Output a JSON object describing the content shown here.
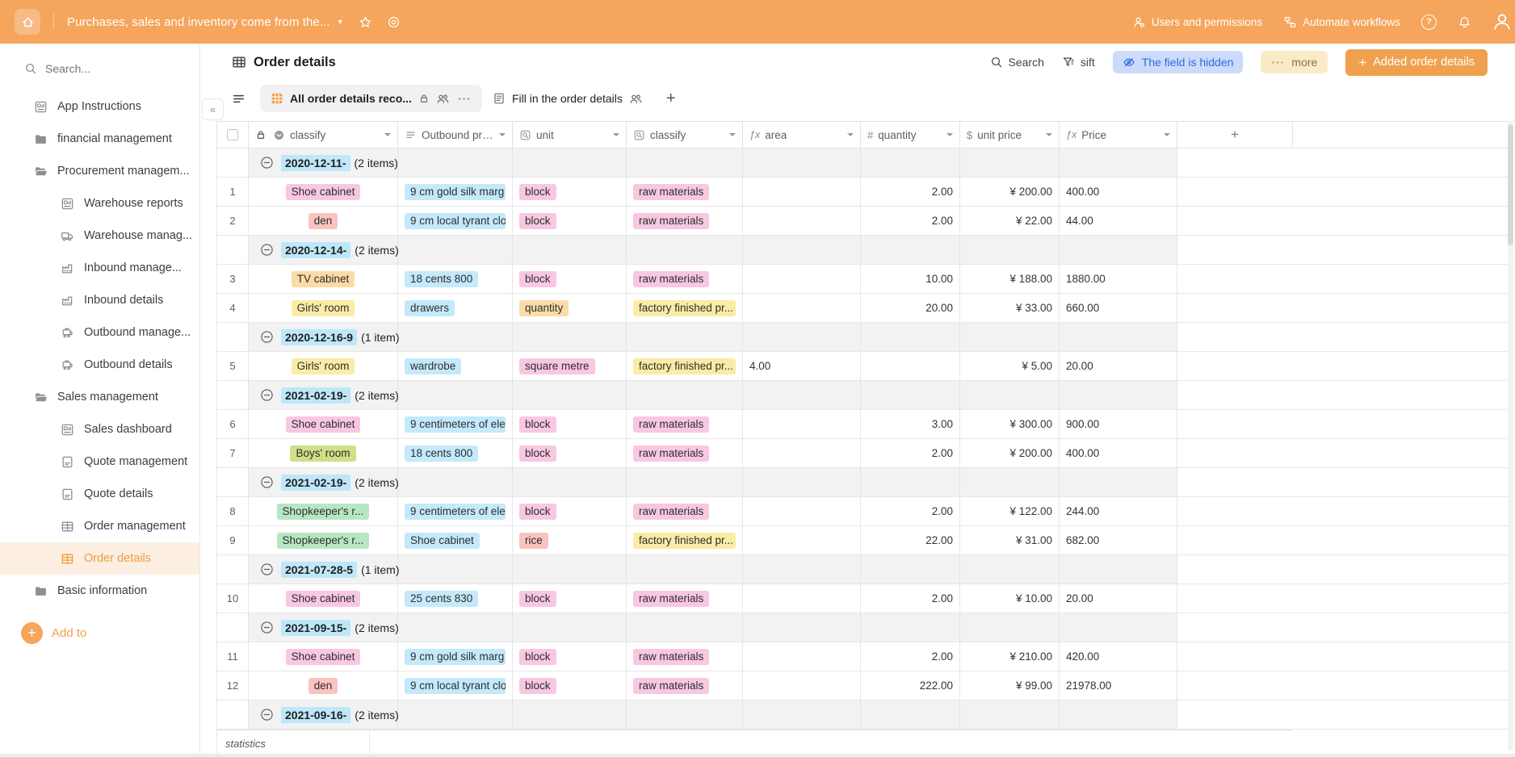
{
  "topbar": {
    "title": "Purchases, sales and inventory come from the...",
    "users_label": "Users and permissions",
    "automate_label": "Automate workflows",
    "help_label": "?"
  },
  "sidebar": {
    "search_placeholder": "Search...",
    "items": [
      {
        "label": "App Instructions",
        "icon": "dashboard",
        "level": 0
      },
      {
        "label": "financial management",
        "icon": "folder-closed",
        "level": 0
      },
      {
        "label": "Procurement managem...",
        "icon": "folder-open",
        "level": 0
      },
      {
        "label": "Warehouse reports",
        "icon": "dashboard",
        "level": 1
      },
      {
        "label": "Warehouse manag...",
        "icon": "truck",
        "level": 1
      },
      {
        "label": "Inbound manage...",
        "icon": "factory",
        "level": 1
      },
      {
        "label": "Inbound details",
        "icon": "factory",
        "level": 1
      },
      {
        "label": "Outbound manage...",
        "icon": "outbound",
        "level": 1
      },
      {
        "label": "Outbound details",
        "icon": "outbound",
        "level": 1
      },
      {
        "label": "Sales management",
        "icon": "folder-open",
        "level": 0
      },
      {
        "label": "Sales dashboard",
        "icon": "dashboard",
        "level": 1
      },
      {
        "label": "Quote management",
        "icon": "document",
        "level": 1
      },
      {
        "label": "Quote details",
        "icon": "document",
        "level": 1
      },
      {
        "label": "Order management",
        "icon": "table",
        "level": 1
      },
      {
        "label": "Order details",
        "icon": "table",
        "level": 1,
        "active": true
      },
      {
        "label": "Basic information",
        "icon": "folder-closed",
        "level": 0
      }
    ],
    "add_label": "Add to"
  },
  "header": {
    "title": "Order details",
    "search_label": "Search",
    "filter_label": "sift",
    "hidden_field_label": "The field is hidden",
    "more_label": "more",
    "more_dots": "···",
    "add_button_label": "Added order details"
  },
  "tabs": {
    "active_label": "All order details reco...",
    "active_dots": "···",
    "inactive_label": "Fill in the order details",
    "add_label": "+"
  },
  "table": {
    "columns": [
      {
        "type": "checkbox",
        "label": ""
      },
      {
        "label": "classify",
        "icon": "select",
        "lock": true,
        "caret": true
      },
      {
        "label": "Outbound pro...",
        "icon": "option",
        "caret": true
      },
      {
        "label": "unit",
        "icon": "lookup",
        "caret": true
      },
      {
        "label": "classify",
        "icon": "lookup",
        "caret": true
      },
      {
        "label": "area",
        "icon": "fx",
        "caret": true
      },
      {
        "label": "quantity",
        "icon": "hash",
        "caret": true
      },
      {
        "label": "unit price",
        "icon": "dollar",
        "caret": true
      },
      {
        "label": "Price",
        "icon": "fx",
        "caret": true
      },
      {
        "type": "add",
        "label": "+"
      }
    ],
    "groups": [
      {
        "date": "2020-12-11-",
        "count": "(2 items)",
        "rows": [
          {
            "num": "1",
            "cells": {
              "classify": {
                "text": "Shoe cabinet",
                "color": "pink"
              },
              "product": {
                "text": "9 cm gold silk marg",
                "color": "blue"
              },
              "unit": {
                "text": "block",
                "color": "pink"
              },
              "classify2": {
                "text": "raw materials",
                "color": "pink"
              },
              "area": "",
              "quantity": "2.00",
              "unit_price": "¥ 200.00",
              "price": "400.00"
            }
          },
          {
            "num": "2",
            "cells": {
              "classify": {
                "text": "den",
                "color": "salmon"
              },
              "product": {
                "text": "9 cm local tyrant clot",
                "color": "blue"
              },
              "unit": {
                "text": "block",
                "color": "pink"
              },
              "classify2": {
                "text": "raw materials",
                "color": "pink"
              },
              "area": "",
              "quantity": "2.00",
              "unit_price": "¥ 22.00",
              "price": "44.00"
            }
          }
        ]
      },
      {
        "date": "2020-12-14-",
        "count": "(2 items)",
        "rows": [
          {
            "num": "3",
            "cells": {
              "classify": {
                "text": "TV cabinet",
                "color": "orange"
              },
              "product": {
                "text": "18 cents 800",
                "color": "blue"
              },
              "unit": {
                "text": "block",
                "color": "pink"
              },
              "classify2": {
                "text": "raw materials",
                "color": "pink"
              },
              "area": "",
              "quantity": "10.00",
              "unit_price": "¥ 188.00",
              "price": "1880.00"
            }
          },
          {
            "num": "4",
            "cells": {
              "classify": {
                "text": "Girls' room",
                "color": "yellow"
              },
              "product": {
                "text": "drawers",
                "color": "blue"
              },
              "unit": {
                "text": "quantity",
                "color": "orange"
              },
              "classify2": {
                "text": "factory finished pr...",
                "color": "yellow"
              },
              "area": "",
              "quantity": "20.00",
              "unit_price": "¥ 33.00",
              "price": "660.00"
            }
          }
        ]
      },
      {
        "date": "2020-12-16-9",
        "count": "(1 item)",
        "rows": [
          {
            "num": "5",
            "cells": {
              "classify": {
                "text": "Girls' room",
                "color": "yellow"
              },
              "product": {
                "text": "wardrobe",
                "color": "blue"
              },
              "unit": {
                "text": "square metre",
                "color": "pink"
              },
              "classify2": {
                "text": "factory finished pr...",
                "color": "yellow"
              },
              "area": "4.00",
              "quantity": "",
              "unit_price": "¥ 5.00",
              "price": "20.00"
            }
          }
        ]
      },
      {
        "date": "2021-02-19-",
        "count": "(2 items)",
        "rows": [
          {
            "num": "6",
            "cells": {
              "classify": {
                "text": "Shoe cabinet",
                "color": "pink"
              },
              "product": {
                "text": "9 centimeters of eleg",
                "color": "blue"
              },
              "unit": {
                "text": "block",
                "color": "pink"
              },
              "classify2": {
                "text": "raw materials",
                "color": "pink"
              },
              "area": "",
              "quantity": "3.00",
              "unit_price": "¥ 300.00",
              "price": "900.00"
            }
          },
          {
            "num": "7",
            "cells": {
              "classify": {
                "text": "Boys' room",
                "color": "olive"
              },
              "product": {
                "text": "18 cents 800",
                "color": "blue"
              },
              "unit": {
                "text": "block",
                "color": "pink"
              },
              "classify2": {
                "text": "raw materials",
                "color": "pink"
              },
              "area": "",
              "quantity": "2.00",
              "unit_price": "¥ 200.00",
              "price": "400.00"
            }
          }
        ]
      },
      {
        "date": "2021-02-19-",
        "count": "(2 items)",
        "rows": [
          {
            "num": "8",
            "cells": {
              "classify": {
                "text": "Shopkeeper's r...",
                "color": "green"
              },
              "product": {
                "text": "9 centimeters of eleg",
                "color": "blue"
              },
              "unit": {
                "text": "block",
                "color": "pink"
              },
              "classify2": {
                "text": "raw materials",
                "color": "pink"
              },
              "area": "",
              "quantity": "2.00",
              "unit_price": "¥ 122.00",
              "price": "244.00"
            }
          },
          {
            "num": "9",
            "cells": {
              "classify": {
                "text": "Shopkeeper's r...",
                "color": "green"
              },
              "product": {
                "text": "Shoe cabinet",
                "color": "blue"
              },
              "unit": {
                "text": "rice",
                "color": "salmon"
              },
              "classify2": {
                "text": "factory finished pr...",
                "color": "yellow"
              },
              "area": "",
              "quantity": "22.00",
              "unit_price": "¥ 31.00",
              "price": "682.00"
            }
          }
        ]
      },
      {
        "date": "2021-07-28-5",
        "count": "(1 item)",
        "rows": [
          {
            "num": "10",
            "cells": {
              "classify": {
                "text": "Shoe cabinet",
                "color": "pink"
              },
              "product": {
                "text": "25 cents 830",
                "color": "blue"
              },
              "unit": {
                "text": "block",
                "color": "pink"
              },
              "classify2": {
                "text": "raw materials",
                "color": "pink"
              },
              "area": "",
              "quantity": "2.00",
              "unit_price": "¥ 10.00",
              "price": "20.00"
            }
          }
        ]
      },
      {
        "date": "2021-09-15-",
        "count": "(2 items)",
        "rows": [
          {
            "num": "11",
            "cells": {
              "classify": {
                "text": "Shoe cabinet",
                "color": "pink"
              },
              "product": {
                "text": "9 cm gold silk marg",
                "color": "blue"
              },
              "unit": {
                "text": "block",
                "color": "pink"
              },
              "classify2": {
                "text": "raw materials",
                "color": "pink"
              },
              "area": "",
              "quantity": "2.00",
              "unit_price": "¥ 210.00",
              "price": "420.00"
            }
          },
          {
            "num": "12",
            "cells": {
              "classify": {
                "text": "den",
                "color": "salmon"
              },
              "product": {
                "text": "9 cm local tyrant clot",
                "color": "blue"
              },
              "unit": {
                "text": "block",
                "color": "pink"
              },
              "classify2": {
                "text": "raw materials",
                "color": "pink"
              },
              "area": "",
              "quantity": "222.00",
              "unit_price": "¥ 99.00",
              "price": "21978.00"
            }
          }
        ]
      },
      {
        "date": "2021-09-16-",
        "count": "(2 items)",
        "rows": []
      }
    ]
  },
  "statistics_label": "statistics",
  "colors": {
    "topbar_orange": "#F5A55C",
    "accent_orange": "#F0A14E",
    "active_item_text": "#ED9C3D",
    "hidden_pill_bg": "#CBDBF9",
    "hidden_pill_text": "#3168E8",
    "group_date_highlight": "#BEE7FA",
    "tag_palette": {
      "pink": "#F8C7E2",
      "blue": "#C3E9FB",
      "orange": "#FBDBA7",
      "yellow": "#F9ECA6",
      "salmon": "#FBC3BF",
      "green": "#B6E7C2",
      "olive": "#CFE087"
    }
  }
}
